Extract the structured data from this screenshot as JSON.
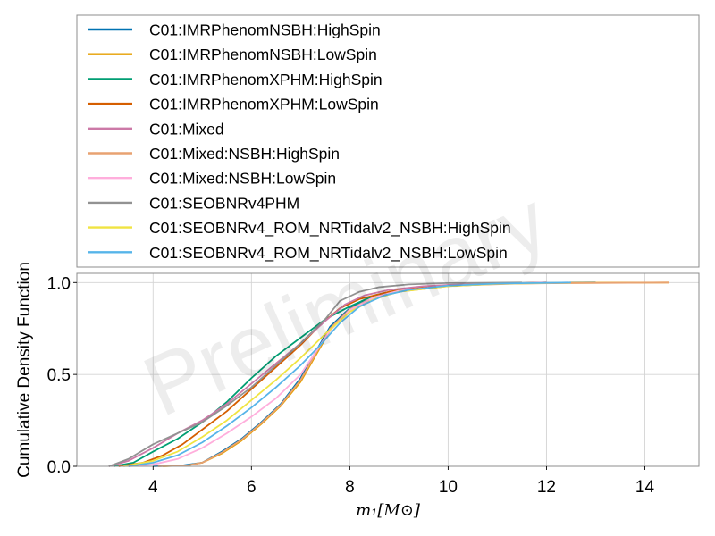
{
  "chart_data": {
    "type": "line",
    "xlabel": "m₁[M⊙]",
    "ylabel": "Cumulative Density Function",
    "watermark": "Preliminary",
    "xlim": [
      2.45,
      15.1
    ],
    "ylim": [
      0,
      1.05
    ],
    "x_ticks": [
      4,
      6,
      8,
      10,
      12,
      14
    ],
    "y_ticks": [
      0.0,
      0.5,
      1.0
    ],
    "x_tick_labels": [
      "4",
      "6",
      "8",
      "10",
      "12",
      "14"
    ],
    "y_tick_labels": [
      "0.0",
      "0.5",
      "1.0"
    ],
    "grid": true,
    "legend_position": "above plot",
    "series": [
      {
        "name": "C01:IMRPhenomNSBH:HighSpin",
        "color": "#0072b2",
        "x": [
          4.0,
          4.6,
          5.0,
          5.4,
          5.8,
          6.2,
          6.6,
          7.0,
          7.3,
          7.6,
          8.0,
          8.4,
          9.0,
          10.0,
          11.0,
          12.0,
          13.0
        ],
        "y": [
          0.0,
          0.005,
          0.02,
          0.08,
          0.15,
          0.24,
          0.34,
          0.48,
          0.62,
          0.76,
          0.86,
          0.92,
          0.96,
          0.985,
          0.995,
          0.998,
          1.0
        ]
      },
      {
        "name": "C01:IMRPhenomNSBH:LowSpin",
        "color": "#e69f00",
        "x": [
          4.2,
          4.7,
          5.0,
          5.4,
          5.8,
          6.2,
          6.6,
          7.0,
          7.3,
          7.6,
          8.0,
          8.5,
          9.0,
          10.0,
          11.0,
          12.5,
          14.5
        ],
        "y": [
          0.0,
          0.005,
          0.02,
          0.07,
          0.14,
          0.23,
          0.33,
          0.46,
          0.6,
          0.74,
          0.85,
          0.92,
          0.95,
          0.98,
          0.993,
          0.998,
          1.0
        ]
      },
      {
        "name": "C01:IMRPhenomXPHM:HighSpin",
        "color": "#009e73",
        "x": [
          3.2,
          3.6,
          4.0,
          4.5,
          5.0,
          5.5,
          6.0,
          6.5,
          7.0,
          7.5,
          8.0,
          8.5,
          9.0,
          10.0,
          11.0,
          12.0
        ],
        "y": [
          0.0,
          0.02,
          0.08,
          0.15,
          0.24,
          0.35,
          0.48,
          0.6,
          0.7,
          0.8,
          0.87,
          0.93,
          0.96,
          0.985,
          0.995,
          1.0
        ]
      },
      {
        "name": "C01:IMRPhenomXPHM:LowSpin",
        "color": "#d55e00",
        "x": [
          3.3,
          3.8,
          4.2,
          4.6,
          5.0,
          5.5,
          6.0,
          6.5,
          7.0,
          7.4,
          7.8,
          8.2,
          8.8,
          9.5,
          10.5,
          12.0
        ],
        "y": [
          0.0,
          0.02,
          0.06,
          0.12,
          0.2,
          0.3,
          0.42,
          0.54,
          0.66,
          0.77,
          0.86,
          0.91,
          0.95,
          0.975,
          0.99,
          1.0
        ]
      },
      {
        "name": "C01:Mixed",
        "color": "#cc79a7",
        "x": [
          3.1,
          3.5,
          4.0,
          4.5,
          5.0,
          5.5,
          6.0,
          6.5,
          7.0,
          7.5,
          7.9,
          8.3,
          8.8,
          9.5,
          10.5,
          12.0
        ],
        "y": [
          0.0,
          0.03,
          0.1,
          0.18,
          0.25,
          0.34,
          0.45,
          0.56,
          0.67,
          0.79,
          0.88,
          0.93,
          0.96,
          0.98,
          0.993,
          1.0
        ]
      },
      {
        "name": "C01:Mixed:NSBH:HighSpin",
        "color": "#e8a271",
        "x": [
          4.1,
          4.7,
          5.0,
          5.4,
          5.8,
          6.2,
          6.6,
          7.0,
          7.3,
          7.6,
          8.0,
          8.5,
          9.0,
          10.0,
          11.5,
          14.5
        ],
        "y": [
          0.0,
          0.005,
          0.02,
          0.075,
          0.145,
          0.235,
          0.335,
          0.47,
          0.61,
          0.75,
          0.855,
          0.92,
          0.955,
          0.982,
          0.995,
          1.0
        ]
      },
      {
        "name": "C01:Mixed:NSBH:LowSpin",
        "color": "#ffaedc",
        "x": [
          3.5,
          4.0,
          4.5,
          5.0,
          5.5,
          6.0,
          6.5,
          7.0,
          7.3,
          7.6,
          8.0,
          8.5,
          9.0,
          10.0,
          11.0,
          12.5
        ],
        "y": [
          0.0,
          0.01,
          0.04,
          0.1,
          0.18,
          0.27,
          0.37,
          0.5,
          0.62,
          0.74,
          0.85,
          0.92,
          0.955,
          0.982,
          0.994,
          1.0
        ]
      },
      {
        "name": "C01:SEOBNRv4PHM",
        "color": "#929292",
        "x": [
          3.1,
          3.5,
          4.0,
          4.5,
          5.0,
          5.5,
          6.0,
          6.5,
          7.0,
          7.5,
          7.8,
          8.2,
          8.6,
          9.2,
          10.0,
          11.5
        ],
        "y": [
          0.0,
          0.04,
          0.12,
          0.18,
          0.24,
          0.33,
          0.43,
          0.55,
          0.67,
          0.8,
          0.9,
          0.95,
          0.975,
          0.99,
          0.997,
          1.0
        ]
      },
      {
        "name": "C01:SEOBNRv4_ROM_NRTidalv2_NSBH:HighSpin",
        "color": "#f0e442",
        "x": [
          3.4,
          4.0,
          4.5,
          5.0,
          5.5,
          6.0,
          6.5,
          7.0,
          7.5,
          8.0,
          8.5,
          9.0,
          10.0,
          11.0,
          12.5
        ],
        "y": [
          0.0,
          0.03,
          0.08,
          0.16,
          0.25,
          0.36,
          0.47,
          0.59,
          0.72,
          0.84,
          0.91,
          0.95,
          0.98,
          0.993,
          1.0
        ]
      },
      {
        "name": "C01:SEOBNRv4_ROM_NRTidalv2_NSBH:LowSpin",
        "color": "#56b4e9",
        "x": [
          3.5,
          4.0,
          4.5,
          5.0,
          5.5,
          6.0,
          6.5,
          7.0,
          7.4,
          7.8,
          8.2,
          8.7,
          9.2,
          10.0,
          11.0,
          12.5
        ],
        "y": [
          0.0,
          0.02,
          0.06,
          0.13,
          0.22,
          0.32,
          0.43,
          0.55,
          0.66,
          0.78,
          0.87,
          0.93,
          0.96,
          0.983,
          0.994,
          1.0
        ]
      }
    ]
  }
}
